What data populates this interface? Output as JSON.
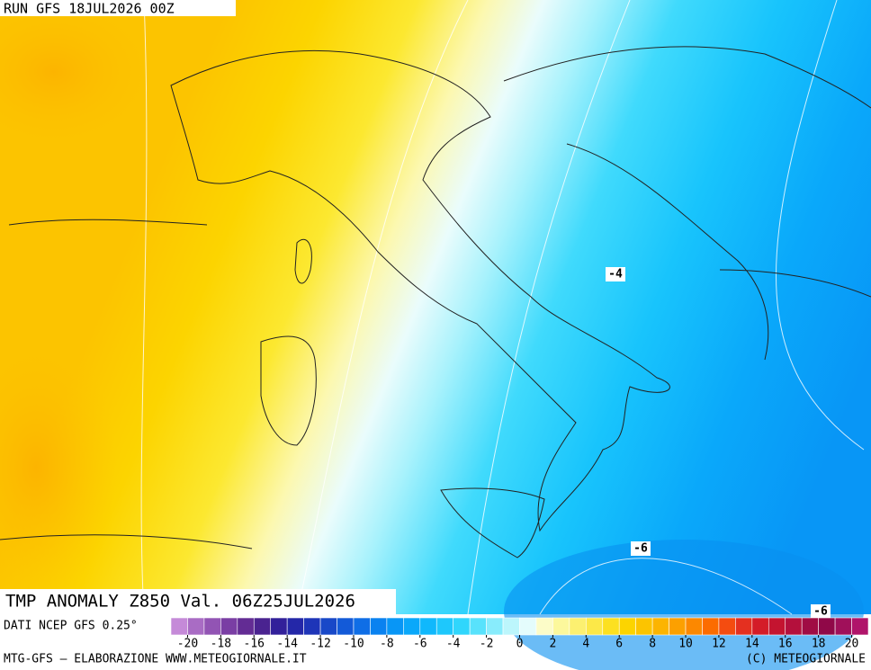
{
  "header": {
    "run": "RUN GFS 18JUL2026 00Z"
  },
  "map": {
    "title": "TMP ANOMALY Z850 Val. 06Z25JUL2026",
    "contour_labels": [
      "-4",
      "-6",
      "-6"
    ]
  },
  "legend": {
    "ticks": [
      -20,
      -18,
      -16,
      -14,
      -12,
      -10,
      -8,
      -6,
      -4,
      -2,
      0,
      2,
      4,
      6,
      8,
      10,
      12,
      14,
      16,
      18,
      20
    ],
    "colors": [
      "#c58ad8",
      "#a96cc4",
      "#9254b4",
      "#7a3ea4",
      "#632c94",
      "#4a2390",
      "#32209a",
      "#2427a8",
      "#1e35b8",
      "#1848c8",
      "#135ad8",
      "#0f6ee6",
      "#0a82f0",
      "#0896f6",
      "#0aa8fa",
      "#10b8fc",
      "#1ec8fc",
      "#30d6fc",
      "#58e2fc",
      "#88ecfc",
      "#bcf6fc",
      "#e4fcfc",
      "#fcfcc8",
      "#fcf89c",
      "#fcf070",
      "#fce848",
      "#fce020",
      "#fcd400",
      "#fcc400",
      "#fcb400",
      "#fca000",
      "#fc8800",
      "#fc6c00",
      "#f44c10",
      "#e43020",
      "#d41c28",
      "#c41430",
      "#b4103c",
      "#a00c44",
      "#900848",
      "#a0105a",
      "#b0146a"
    ]
  },
  "footer": {
    "source": "DATI NCEP GFS 0.25°",
    "credit": "MTG-GFS — ELABORAZIONE WWW.METEOGIORNALE.IT",
    "copyright": "(C) METEOGIORNALE"
  }
}
